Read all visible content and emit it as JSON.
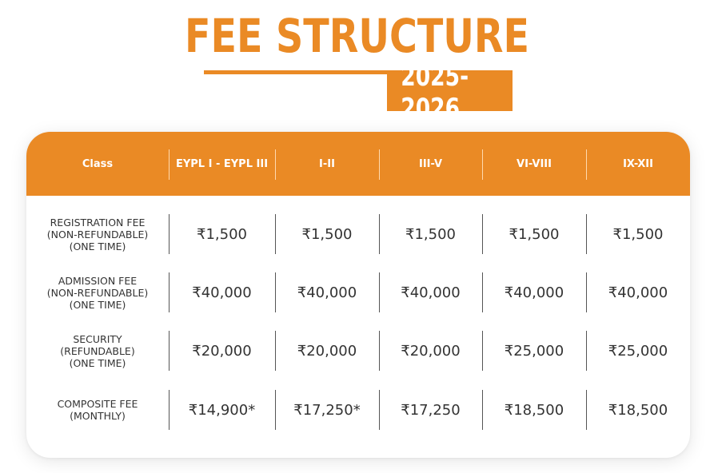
{
  "title": "FEE STRUCTURE",
  "year": "2025-2026",
  "table": {
    "columns": [
      "Class",
      "EYPL I - EYPL III",
      "I-II",
      "III-V",
      "VI-VIII",
      "IX-XII"
    ],
    "rows": [
      {
        "label_lines": [
          "REGISTRATION FEE",
          "(NON-REFUNDABLE)",
          "(ONE TIME)"
        ],
        "values": [
          "₹1,500",
          "₹1,500",
          "₹1,500",
          "₹1,500",
          "₹1,500"
        ]
      },
      {
        "label_lines": [
          "ADMISSION FEE",
          "(NON-REFUNDABLE)",
          "(ONE TIME)"
        ],
        "values": [
          "₹40,000",
          "₹40,000",
          "₹40,000",
          "₹40,000",
          "₹40,000"
        ]
      },
      {
        "label_lines": [
          "SECURITY",
          "(REFUNDABLE)",
          "(ONE TIME)"
        ],
        "values": [
          "₹20,000",
          "₹20,000",
          "₹20,000",
          "₹25,000",
          "₹25,000"
        ]
      },
      {
        "label_lines": [
          "COMPOSITE FEE",
          "(MONTHLY)"
        ],
        "values": [
          "₹14,900*",
          "₹17,250*",
          "₹17,250",
          "₹18,500",
          "₹18,500"
        ]
      }
    ]
  },
  "colors": {
    "accent": "#ea8a25",
    "text": "#333333",
    "header_text": "#ffffff"
  }
}
